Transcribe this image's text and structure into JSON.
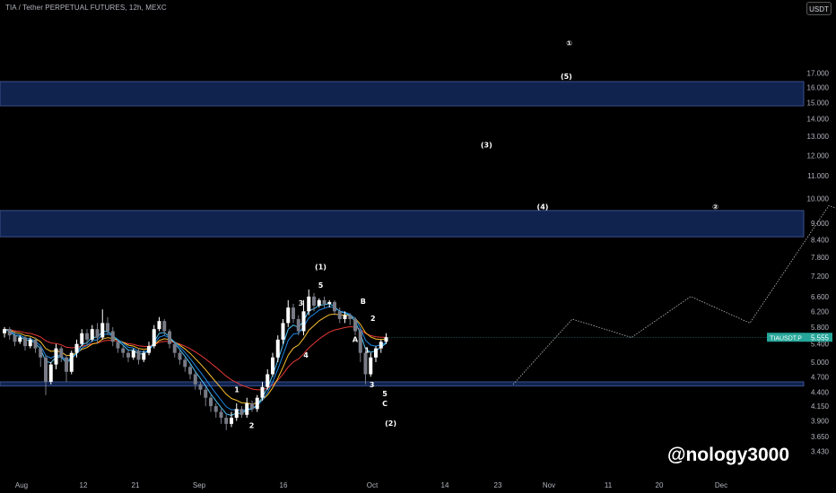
{
  "header": {
    "title": "TIA / Tether PERPETUAL FUTURES, 12h, MEXC",
    "currency": "USDT"
  },
  "watermark": "@nology3000",
  "colors": {
    "zone": "#10234f",
    "candle": "#ffffff",
    "candle_down": "#787b86",
    "ema_red": "#e53935",
    "ema_yellow": "#fbc02d",
    "ema_blue": "#1e88e5",
    "ema_lightblue": "#4fc3f7",
    "price_tag": "#26a69a"
  },
  "chart_data": {
    "type": "candlestick",
    "title": "TIA / Tether PERPETUAL FUTURES, 12h, MEXC",
    "y_scale": "log",
    "y_ticks": [
      "17.000",
      "16.000",
      "15.000",
      "14.000",
      "13.000",
      "12.000",
      "11.000",
      "10.000",
      "9.000",
      "8.400",
      "7.800",
      "7.200",
      "6.600",
      "6.200",
      "5.800",
      "5.400",
      "5.000",
      "4.700",
      "4.400",
      "4.150",
      "3.900",
      "3.650",
      "3.430"
    ],
    "x_ticks": [
      "Aug",
      "12",
      "21",
      "Sep",
      "16",
      "Oct",
      "14",
      "23",
      "Nov",
      "11",
      "20",
      "Dec"
    ],
    "last_price": {
      "label": "TIAUSDT.P",
      "value": "5.555"
    },
    "zones": [
      {
        "low": 14.8,
        "high": 16.4
      },
      {
        "low": 8.5,
        "high": 9.5
      },
      {
        "low": 4.52,
        "high": 4.6
      }
    ],
    "candles": [
      [
        5.65,
        5.75,
        5.55,
        5.8
      ],
      [
        5.75,
        5.6,
        5.5,
        5.8
      ],
      [
        5.6,
        5.45,
        5.35,
        5.7
      ],
      [
        5.45,
        5.55,
        5.4,
        5.6
      ],
      [
        5.55,
        5.35,
        5.25,
        5.6
      ],
      [
        5.35,
        5.5,
        5.3,
        5.55
      ],
      [
        5.5,
        5.3,
        5.2,
        5.55
      ],
      [
        5.3,
        5.1,
        4.9,
        5.35
      ],
      [
        5.1,
        4.6,
        4.35,
        5.15
      ],
      [
        4.6,
        4.95,
        4.55,
        5.0
      ],
      [
        4.95,
        5.3,
        4.85,
        5.4
      ],
      [
        5.3,
        5.1,
        5.0,
        5.35
      ],
      [
        5.1,
        4.8,
        4.6,
        5.15
      ],
      [
        4.8,
        5.2,
        4.75,
        5.25
      ],
      [
        5.2,
        5.4,
        5.1,
        5.5
      ],
      [
        5.4,
        5.65,
        5.35,
        5.75
      ],
      [
        5.65,
        5.5,
        5.35,
        5.75
      ],
      [
        5.5,
        5.75,
        5.45,
        5.85
      ],
      [
        5.75,
        5.55,
        5.4,
        5.9
      ],
      [
        5.55,
        5.9,
        5.5,
        6.25
      ],
      [
        5.9,
        5.7,
        5.6,
        6.05
      ],
      [
        5.7,
        5.45,
        5.35,
        5.8
      ],
      [
        5.45,
        5.3,
        5.2,
        5.5
      ],
      [
        5.3,
        5.2,
        5.1,
        5.35
      ],
      [
        5.2,
        5.1,
        5.0,
        5.25
      ],
      [
        5.1,
        5.25,
        5.05,
        5.3
      ],
      [
        5.25,
        5.05,
        4.95,
        5.3
      ],
      [
        5.05,
        5.2,
        5.0,
        5.25
      ],
      [
        5.2,
        5.35,
        5.15,
        5.45
      ],
      [
        5.35,
        5.75,
        5.3,
        5.85
      ],
      [
        5.75,
        5.95,
        5.7,
        6.05
      ],
      [
        5.95,
        5.7,
        5.6,
        6.0
      ],
      [
        5.7,
        5.4,
        5.3,
        5.75
      ],
      [
        5.4,
        5.2,
        5.1,
        5.45
      ],
      [
        5.2,
        5.05,
        4.95,
        5.25
      ],
      [
        5.05,
        4.9,
        4.8,
        5.1
      ],
      [
        4.9,
        4.75,
        4.65,
        4.95
      ],
      [
        4.75,
        4.55,
        4.45,
        4.8
      ],
      [
        4.55,
        4.45,
        4.35,
        4.6
      ],
      [
        4.45,
        4.3,
        4.15,
        4.5
      ],
      [
        4.3,
        4.15,
        4.05,
        4.35
      ],
      [
        4.15,
        4.05,
        3.95,
        4.2
      ],
      [
        4.05,
        3.95,
        3.85,
        4.1
      ],
      [
        3.95,
        3.85,
        3.75,
        4.0
      ],
      [
        3.85,
        3.95,
        3.8,
        4.05
      ],
      [
        3.95,
        4.1,
        3.9,
        4.2
      ],
      [
        4.1,
        4.0,
        3.95,
        4.15
      ],
      [
        4.0,
        4.2,
        3.95,
        4.3
      ],
      [
        4.2,
        4.1,
        4.05,
        4.25
      ],
      [
        4.1,
        4.3,
        4.05,
        4.35
      ],
      [
        4.3,
        4.5,
        4.25,
        4.6
      ],
      [
        4.5,
        4.75,
        4.45,
        4.85
      ],
      [
        4.75,
        5.1,
        4.7,
        5.2
      ],
      [
        5.1,
        5.5,
        5.0,
        5.6
      ],
      [
        5.5,
        5.9,
        5.4,
        6.0
      ],
      [
        5.9,
        6.3,
        5.8,
        6.5
      ],
      [
        6.3,
        6.0,
        5.9,
        6.4
      ],
      [
        6.0,
        5.7,
        5.6,
        6.1
      ],
      [
        5.7,
        6.2,
        5.6,
        6.5
      ],
      [
        6.2,
        6.6,
        6.1,
        6.8
      ],
      [
        6.6,
        6.35,
        6.2,
        6.7
      ],
      [
        6.35,
        6.5,
        6.3,
        6.55
      ],
      [
        6.5,
        6.4,
        6.3,
        6.6
      ],
      [
        6.4,
        6.45,
        6.3,
        6.5
      ],
      [
        6.45,
        6.2,
        6.1,
        6.5
      ],
      [
        6.2,
        6.0,
        5.9,
        6.3
      ],
      [
        6.0,
        6.1,
        5.9,
        6.2
      ],
      [
        6.1,
        6.0,
        5.85,
        6.15
      ],
      [
        6.0,
        5.7,
        5.6,
        6.05
      ],
      [
        5.7,
        5.2,
        5.0,
        5.75
      ],
      [
        5.2,
        4.75,
        4.55,
        5.3
      ],
      [
        4.75,
        5.1,
        4.7,
        5.2
      ],
      [
        5.1,
        5.3,
        5.0,
        5.35
      ],
      [
        5.3,
        5.45,
        5.2,
        5.5
      ],
      [
        5.45,
        5.555,
        5.4,
        5.65
      ]
    ],
    "projection": [
      [
        5.2,
        4.55
      ],
      [
        5.8,
        6.0
      ],
      [
        6.4,
        5.55
      ],
      [
        7.0,
        6.6
      ],
      [
        7.6,
        5.9
      ],
      [
        8.4,
        9.7
      ],
      [
        9.0,
        8.9
      ],
      [
        9.6,
        11.6
      ],
      [
        10.7,
        10.15
      ],
      [
        12.2,
        16.3
      ],
      [
        13.3,
        13.5
      ],
      [
        14.3,
        14.8
      ],
      [
        16.7,
        10.3
      ],
      [
        18.5,
        20.0
      ]
    ],
    "alt_projection": [
      [
        8.8,
        11.7
      ],
      [
        9.0,
        8.9
      ],
      [
        9.9,
        11.8
      ]
    ],
    "labels": [
      {
        "text": "1",
        "x": 2.4,
        "y": 4.4
      },
      {
        "text": "2",
        "x": 2.55,
        "y": 3.78
      },
      {
        "text": "3",
        "x": 3.05,
        "y": 6.35
      },
      {
        "text": "4",
        "x": 3.1,
        "y": 5.1
      },
      {
        "text": "(1)",
        "x": 3.25,
        "y": 7.4
      },
      {
        "text": "5",
        "x": 3.25,
        "y": 6.85
      },
      {
        "text": "B",
        "x": 3.68,
        "y": 6.4
      },
      {
        "text": "2",
        "x": 3.78,
        "y": 5.95
      },
      {
        "text": "A",
        "x": 3.6,
        "y": 5.45
      },
      {
        "text": "1",
        "x": 3.72,
        "y": 5.2
      },
      {
        "text": "3",
        "x": 3.77,
        "y": 4.5
      },
      {
        "text": "5",
        "x": 3.9,
        "y": 4.33
      },
      {
        "text": "C",
        "x": 3.9,
        "y": 4.15
      },
      {
        "text": "(2)",
        "x": 3.96,
        "y": 3.82
      },
      {
        "text": "(3)",
        "x": 4.93,
        "y": 12.4
      },
      {
        "text": "(4)",
        "x": 5.5,
        "y": 9.55
      },
      {
        "text": "(5)",
        "x": 5.74,
        "y": 16.6
      },
      {
        "text": "①",
        "x": 5.77,
        "y": 19.1
      },
      {
        "text": "②",
        "x": 7.25,
        "y": 9.55
      }
    ]
  }
}
